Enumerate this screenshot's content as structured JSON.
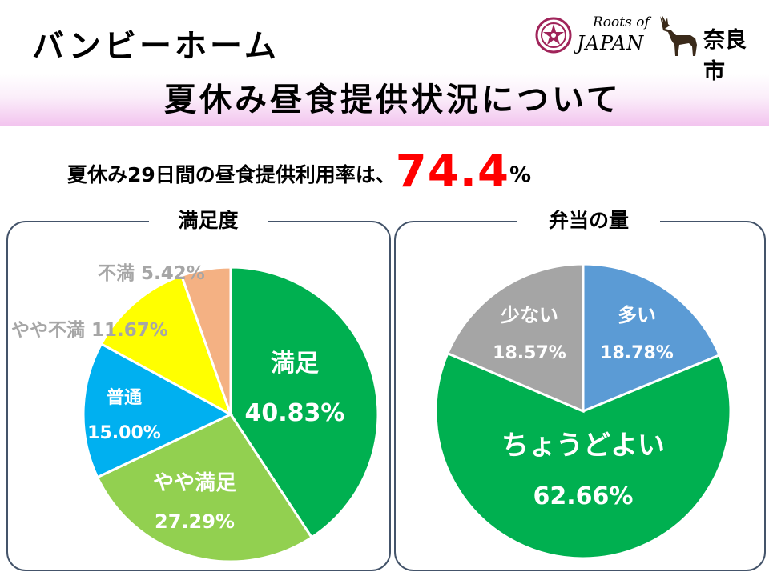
{
  "header": {
    "title_line1": "バンビーホーム",
    "title_line2": "夏休み昼食提供状況について",
    "logo_roots": "Roots of",
    "logo_japan": "JAPAN",
    "logo_city": "奈良市"
  },
  "headline": {
    "prefix": "夏休み29日間の昼食提供利用率は、",
    "value": "74.4",
    "unit": "%"
  },
  "chart_data": [
    {
      "type": "pie",
      "title": "満足度",
      "slices": [
        {
          "label": "満足",
          "value": 40.83,
          "value_label": "40.83%",
          "color": "#00b050"
        },
        {
          "label": "やや満足",
          "value": 27.29,
          "value_label": "27.29%",
          "color": "#92d050"
        },
        {
          "label": "普通",
          "value": 15.0,
          "value_label": "15.00%",
          "color": "#00b0f0"
        },
        {
          "label": "やや不満",
          "value": 11.67,
          "value_label": "11.67%",
          "color": "#ffff00"
        },
        {
          "label": "不満",
          "value": 5.42,
          "value_label": "5.42%",
          "color": "#f4b183"
        }
      ],
      "start": "12 o'clock",
      "direction": "clockwise"
    },
    {
      "type": "pie",
      "title": "弁当の量",
      "slices": [
        {
          "label": "多い",
          "value": 18.78,
          "value_label": "18.78%",
          "color": "#5b9bd5"
        },
        {
          "label": "ちょうどよい",
          "value": 62.66,
          "value_label": "62.66%",
          "color": "#00b050"
        },
        {
          "label": "少ない",
          "value": 18.57,
          "value_label": "18.57%",
          "color": "#a5a5a5"
        }
      ],
      "start": "12 o'clock",
      "direction": "clockwise"
    }
  ]
}
